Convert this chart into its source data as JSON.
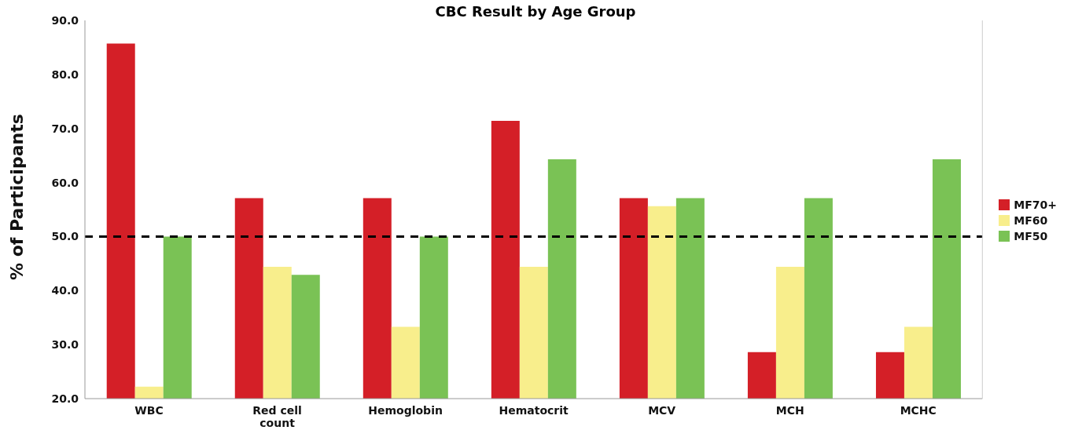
{
  "chart_data": {
    "type": "bar",
    "title": "CBC Result by Age Group",
    "ylabel": "% of Participants",
    "categories": [
      "WBC",
      "Red cell count",
      "Hemoglobin",
      "Hematocrit",
      "MCV",
      "MCH",
      "MCHC"
    ],
    "series": [
      {
        "name": "MF70+",
        "color": "#d41f27",
        "values": [
          85.7,
          57.1,
          57.1,
          71.4,
          57.1,
          28.6,
          28.6
        ]
      },
      {
        "name": "MF60",
        "color": "#f8ee8c",
        "values": [
          22.2,
          44.4,
          33.3,
          44.4,
          55.6,
          44.4,
          33.3
        ]
      },
      {
        "name": "MF50",
        "color": "#7ac255",
        "values": [
          50,
          42.9,
          50,
          64.3,
          57.1,
          57.1,
          64.3
        ]
      }
    ],
    "ylim": [
      20,
      90
    ],
    "yticks": [
      {
        "value": 20,
        "label": "20.0"
      },
      {
        "value": 30,
        "label": "30.0"
      },
      {
        "value": 40,
        "label": "40.0"
      },
      {
        "value": 50,
        "label": "50.0"
      },
      {
        "value": 60,
        "label": "60.0"
      },
      {
        "value": 70,
        "label": "70.0"
      },
      {
        "value": 80,
        "label": "80.0"
      },
      {
        "value": 90,
        "label": "90.0"
      }
    ],
    "ref_lines": [
      {
        "axis": "y",
        "value": 50,
        "color": "#000000",
        "line_style": "dashed"
      }
    ],
    "legend": "right"
  }
}
